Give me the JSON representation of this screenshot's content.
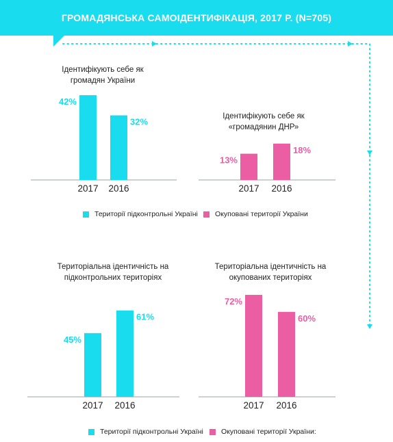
{
  "header": {
    "title": "ГРОМАДЯНСЬКА САМОІДЕНТИФІКАЦІЯ, 2017 Р. (N=705)"
  },
  "colors": {
    "banner": "#19dcee",
    "controlled": "#19dcee",
    "occupied": "#ec5ea4",
    "connector": "#19dcee",
    "axis": "#9aa0a6"
  },
  "legends": [
    {
      "controlled": "Території підконтрольні Україні",
      "occupied": "Окуповані території України"
    },
    {
      "controlled": "Території підконтрольні Україні",
      "occupied": "Окуповані території України:"
    }
  ],
  "chart_data": [
    {
      "type": "bar",
      "title": "Ідентифікують себе як громадян України",
      "categories": [
        "2017",
        "2016"
      ],
      "values": [
        42,
        32
      ],
      "value_labels": [
        "42%",
        "32%"
      ],
      "color": "controlled"
    },
    {
      "type": "bar",
      "title": "Ідентифікують себе як «громадянин ДНР»",
      "categories": [
        "2017",
        "2016"
      ],
      "values": [
        13,
        18
      ],
      "value_labels": [
        "13%",
        "18%"
      ],
      "color": "occupied"
    },
    {
      "type": "bar",
      "title": "Територіальна ідентичність на підконтрольних територіях",
      "categories": [
        "2017",
        "2016"
      ],
      "values": [
        45,
        61
      ],
      "value_labels": [
        "45%",
        "61%"
      ],
      "color": "controlled"
    },
    {
      "type": "bar",
      "title": "Територіальна ідентичність на окупованих територіях",
      "categories": [
        "2017",
        "2016"
      ],
      "values": [
        72,
        60
      ],
      "value_labels": [
        "72%",
        "60%"
      ],
      "color": "occupied"
    }
  ]
}
